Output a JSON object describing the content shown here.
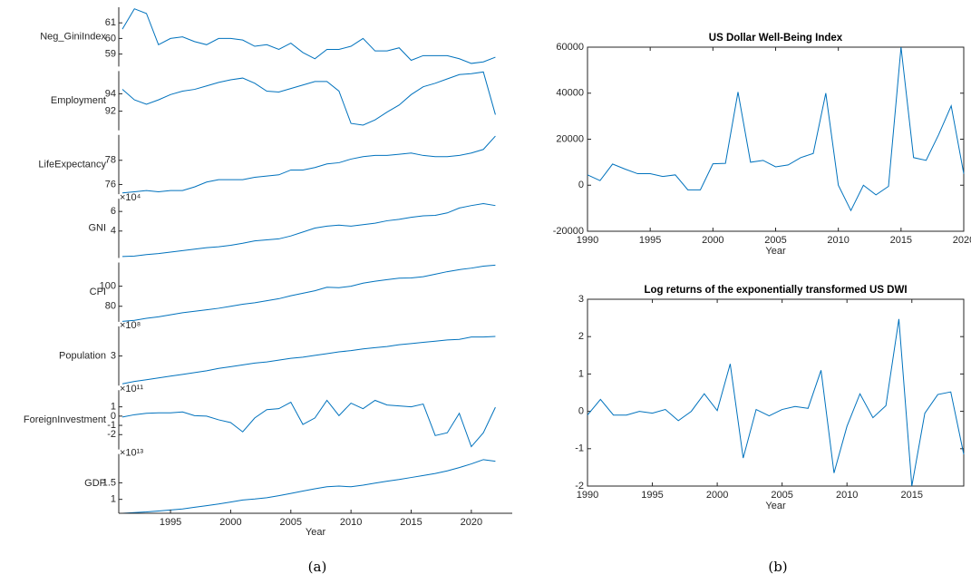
{
  "captions": [
    "(a)",
    "(b)"
  ],
  "chart_data": [
    {
      "type": "stacked",
      "color": "#0072bd",
      "xlabel": "Year",
      "x": [
        1991,
        1992,
        1993,
        1994,
        1995,
        1996,
        1997,
        1998,
        1999,
        2000,
        2001,
        2002,
        2003,
        2004,
        2005,
        2006,
        2007,
        2008,
        2009,
        2010,
        2011,
        2012,
        2013,
        2014,
        2015,
        2016,
        2017,
        2018,
        2019,
        2020,
        2021,
        2022
      ],
      "xlim": [
        1990.7,
        2023.4
      ],
      "xticks": [
        1995,
        2000,
        2005,
        2010,
        2015,
        2020
      ],
      "panels": [
        {
          "ylabel": "Neg_GiniIndex",
          "ylim": [
            58.2,
            62
          ],
          "yticks": [
            59,
            60,
            61
          ],
          "values": [
            60.6,
            61.9,
            61.6,
            59.6,
            60.0,
            60.1,
            59.8,
            59.6,
            60.0,
            60.0,
            59.9,
            59.5,
            59.6,
            59.3,
            59.7,
            59.1,
            58.7,
            59.3,
            59.3,
            59.5,
            60.0,
            59.2,
            59.2,
            59.4,
            58.6,
            58.9,
            58.9,
            58.9,
            58.7,
            58.4,
            58.5,
            58.8
          ]
        },
        {
          "ylabel": "Employment",
          "ylim": [
            89.8,
            96.6
          ],
          "yticks": [
            92,
            94
          ],
          "values": [
            94.5,
            93.3,
            92.8,
            93.3,
            93.9,
            94.3,
            94.5,
            94.9,
            95.3,
            95.6,
            95.8,
            95.2,
            94.3,
            94.2,
            94.6,
            95.0,
            95.4,
            95.4,
            94.3,
            90.6,
            90.4,
            91.0,
            91.9,
            92.7,
            93.9,
            94.8,
            95.2,
            95.7,
            96.2,
            96.3,
            96.5,
            91.6
          ]
        },
        {
          "ylabel": "LifeExpectancy",
          "ylim": [
            75.2,
            80.1
          ],
          "yticks": [
            76,
            78
          ],
          "values": [
            75.3,
            75.4,
            75.5,
            75.4,
            75.5,
            75.5,
            75.8,
            76.2,
            76.4,
            76.4,
            76.4,
            76.6,
            76.7,
            76.8,
            77.2,
            77.2,
            77.4,
            77.7,
            77.8,
            78.1,
            78.3,
            78.4,
            78.4,
            78.5,
            78.6,
            78.4,
            78.3,
            78.3,
            78.4,
            78.6,
            78.9,
            80.0
          ]
        },
        {
          "ylabel": "GNI",
          "scale": "×10⁴",
          "ylim": [
            1.25,
            7.3
          ],
          "yticks": [
            4,
            6
          ],
          "values": [
            1.4,
            1.45,
            1.6,
            1.7,
            1.85,
            2.0,
            2.15,
            2.3,
            2.4,
            2.55,
            2.75,
            3.0,
            3.1,
            3.2,
            3.5,
            3.9,
            4.3,
            4.5,
            4.6,
            4.5,
            4.65,
            4.8,
            5.05,
            5.2,
            5.4,
            5.55,
            5.6,
            5.85,
            6.35,
            6.6,
            6.8,
            6.6
          ]
        },
        {
          "ylabel": "CPI",
          "ylim": [
            64.5,
            123.6
          ],
          "yticks": [
            80,
            100
          ],
          "values": [
            65,
            66,
            68,
            69.5,
            71.5,
            73.5,
            75,
            76.5,
            78,
            80,
            82,
            83.5,
            85.5,
            87.5,
            90.5,
            93,
            95.5,
            99,
            98.5,
            100,
            103,
            105,
            106.5,
            108,
            108.2,
            109.5,
            112,
            114.5,
            116.5,
            118,
            120,
            121
          ]
        },
        {
          "ylabel": "Population",
          "scale": "×10⁸",
          "ylim": [
            2.5,
            3.5
          ],
          "yticks": [
            3
          ],
          "values": [
            2.53,
            2.57,
            2.6,
            2.63,
            2.66,
            2.69,
            2.72,
            2.75,
            2.79,
            2.82,
            2.85,
            2.88,
            2.9,
            2.93,
            2.96,
            2.98,
            3.01,
            3.04,
            3.07,
            3.09,
            3.12,
            3.14,
            3.16,
            3.19,
            3.21,
            3.23,
            3.25,
            3.27,
            3.28,
            3.32,
            3.32,
            3.33
          ]
        },
        {
          "ylabel": "ForeignInvestment",
          "scale": "×10¹¹",
          "ylim": [
            -3.6,
            2.8
          ],
          "yticks": [
            -2,
            -1,
            0,
            1
          ],
          "values": [
            -0.1,
            0.15,
            0.3,
            0.35,
            0.35,
            0.45,
            0.05,
            0,
            -0.4,
            -0.7,
            -1.7,
            -0.2,
            0.7,
            0.8,
            1.5,
            -0.9,
            -0.2,
            1.7,
            0.05,
            1.4,
            0.8,
            1.7,
            1.2,
            1.1,
            1.0,
            1.3,
            -2.1,
            -1.8,
            0.3,
            -3.3,
            -1.8,
            0.95
          ]
        },
        {
          "ylabel": "GDP",
          "scale": "×10¹³",
          "ylim": [
            0.58,
            2.37
          ],
          "yticks": [
            1,
            1.5
          ],
          "values": [
            0.58,
            0.6,
            0.62,
            0.65,
            0.68,
            0.71,
            0.76,
            0.81,
            0.86,
            0.92,
            0.98,
            1.01,
            1.05,
            1.11,
            1.18,
            1.25,
            1.32,
            1.38,
            1.4,
            1.38,
            1.43,
            1.49,
            1.55,
            1.6,
            1.66,
            1.72,
            1.78,
            1.86,
            1.96,
            2.07,
            2.2,
            2.15
          ]
        }
      ]
    },
    {
      "type": "line",
      "title": "US Dollar Well-Being Index",
      "xlabel": "Year",
      "color": "#0072bd",
      "x": [
        1990,
        1991,
        1992,
        1993,
        1994,
        1995,
        1996,
        1997,
        1998,
        1999,
        2000,
        2001,
        2002,
        2003,
        2004,
        2005,
        2006,
        2007,
        2008,
        2009,
        2010,
        2011,
        2012,
        2013,
        2014,
        2015,
        2016,
        2017,
        2018,
        2019,
        2020
      ],
      "values": [
        4500,
        2000,
        9200,
        7000,
        5000,
        5000,
        3800,
        4500,
        -2000,
        -2000,
        9300,
        9500,
        40500,
        10000,
        10800,
        8000,
        8800,
        12000,
        13800,
        40000,
        0,
        -11000,
        0,
        -4200,
        -500,
        60000,
        12000,
        10800,
        22000,
        34500,
        5000
      ],
      "xlim": [
        1990,
        2020
      ],
      "xticks": [
        1990,
        1995,
        2000,
        2005,
        2010,
        2015,
        2020
      ],
      "ylim": [
        -20000,
        60000
      ],
      "yticks": [
        -20000,
        0,
        20000,
        40000,
        60000
      ]
    },
    {
      "type": "line",
      "title": "Log returns of the exponentially transformed US DWI",
      "xlabel": "Year",
      "color": "#0072bd",
      "x": [
        1990,
        1991,
        1992,
        1993,
        1994,
        1995,
        1996,
        1997,
        1998,
        1999,
        2000,
        2001,
        2002,
        2003,
        2004,
        2005,
        2006,
        2007,
        2008,
        2009,
        2010,
        2011,
        2012,
        2013,
        2014,
        2015,
        2016,
        2017,
        2018,
        2019
      ],
      "values": [
        -0.1,
        0.32,
        -0.1,
        -0.1,
        0,
        -0.05,
        0.05,
        -0.25,
        0,
        0.47,
        0.02,
        1.27,
        -1.25,
        0.05,
        -0.12,
        0.05,
        0.13,
        0.08,
        1.1,
        -1.65,
        -0.4,
        0.47,
        -0.17,
        0.15,
        2.47,
        -2.0,
        -0.05,
        0.45,
        0.52,
        -1.15
      ],
      "xlim": [
        1990,
        2019
      ],
      "xticks": [
        1990,
        1995,
        2000,
        2005,
        2010,
        2015
      ],
      "ylim": [
        -2,
        3
      ],
      "yticks": [
        -2,
        -1,
        0,
        1,
        2,
        3
      ]
    }
  ]
}
